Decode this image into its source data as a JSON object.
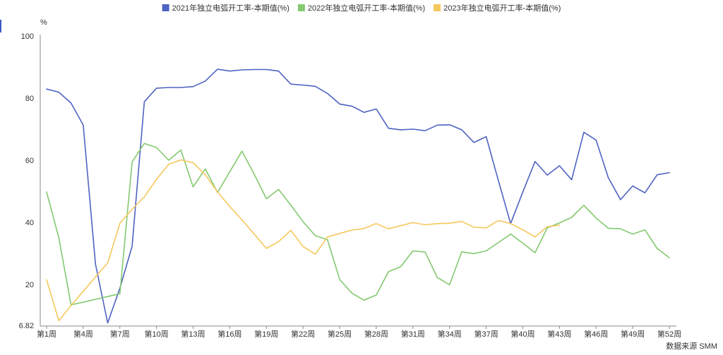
{
  "chart_data": {
    "type": "line",
    "ylabel": "%",
    "yticks": [
      6.82,
      20,
      40,
      60,
      80,
      100
    ],
    "ylim": [
      6.82,
      100
    ],
    "xtick_weeks": [
      1,
      4,
      7,
      10,
      13,
      16,
      19,
      22,
      25,
      28,
      31,
      34,
      37,
      40,
      43,
      46,
      49,
      52
    ],
    "xtick_labels": [
      "第1周",
      "第4周",
      "第7周",
      "第10周",
      "第13周",
      "第16周",
      "第19周",
      "第22周",
      "第25周",
      "第28周",
      "第31周",
      "第34周",
      "第37周",
      "第40周",
      "第43周",
      "第46周",
      "第49周",
      "第52周"
    ],
    "source": "数据来源 SMM",
    "legend_position": "top-center",
    "grid": false,
    "series": [
      {
        "name": "2021年独立电弧开工率-本期值(%)",
        "color": "#4f63c2",
        "values": [
          82.9,
          81.9,
          78.4,
          71.3,
          26.6,
          7.6,
          18.8,
          32.3,
          78.8,
          83.2,
          83.4,
          83.4,
          83.7,
          85.5,
          89.3,
          88.7,
          89.1,
          89.2,
          89.2,
          88.7,
          84.5,
          84.2,
          83.8,
          81.5,
          78.1,
          77.4,
          75.4,
          76.5,
          70.3,
          69.8,
          70.0,
          69.5,
          71.3,
          71.4,
          69.8,
          65.7,
          67.6,
          53.4,
          39.6,
          49.8,
          59.6,
          55.2,
          58.2,
          53.7,
          69.0,
          66.5,
          54.4,
          47.3,
          51.7,
          49.5,
          55.3,
          56.0
        ]
      },
      {
        "name": "2022年独立电弧开工率-本期值(%)",
        "color": "#82c96f",
        "values": [
          49.8,
          35.0,
          13.4,
          14.3,
          15.2,
          16.1,
          17.0,
          59.4,
          65.4,
          64.1,
          60.0,
          63.3,
          51.4,
          57.2,
          49.6,
          56.3,
          62.9,
          55.5,
          47.6,
          50.6,
          45.5,
          40.2,
          35.7,
          34.4,
          21.6,
          17.2,
          14.9,
          16.6,
          24.1,
          25.7,
          30.8,
          30.4,
          22.2,
          19.9,
          30.5,
          29.9,
          30.8,
          33.5,
          36.2,
          33.3,
          30.2,
          38.2,
          39.8,
          41.6,
          45.5,
          41.4,
          38.1,
          37.9,
          36.2,
          37.6,
          31.6,
          28.6
        ]
      },
      {
        "name": "2023年独立电弧开工率-本期值(%)",
        "color": "#f5c85c",
        "values": [
          21.5,
          8.3,
          13.2,
          17.8,
          22.4,
          26.9,
          39.7,
          44.2,
          48.2,
          53.8,
          58.7,
          60.1,
          59.2,
          55.3,
          49.8,
          45.1,
          40.8,
          36.2,
          31.6,
          33.8,
          37.4,
          32.2,
          29.7,
          35.3,
          36.4,
          37.5,
          38.0,
          39.6,
          37.9,
          38.9,
          39.9,
          39.2,
          39.6,
          39.7,
          40.3,
          38.4,
          38.2,
          40.6,
          39.6,
          37.6,
          35.3,
          38.6,
          39.1
        ]
      }
    ]
  }
}
